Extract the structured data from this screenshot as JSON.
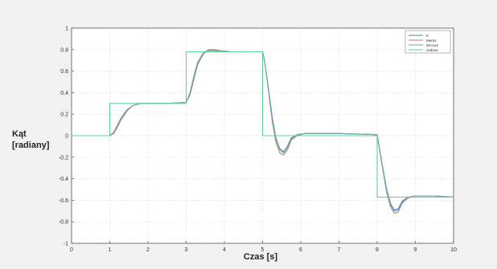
{
  "chart_data": {
    "type": "line",
    "title": "",
    "xlabel": "Czas [s]",
    "ylabel_lines": [
      "Kąt",
      "[radiany]"
    ],
    "xlim": [
      0,
      10
    ],
    "ylim": [
      -1,
      1
    ],
    "xticks": [
      0,
      1,
      2,
      3,
      4,
      5,
      6,
      7,
      8,
      9,
      10
    ],
    "yticks": [
      -1,
      -0.8,
      -0.6,
      -0.4,
      -0.2,
      0,
      0.2,
      0.4,
      0.6,
      0.8,
      1
    ],
    "ytick_labels": [
      "-1",
      "-0.8",
      "-0.6",
      "-0.4",
      "-0.2",
      "0",
      "0.2",
      "0.4",
      "0.6",
      "0.8",
      "1"
    ],
    "grid": true,
    "legend_position": "top-right",
    "series": [
      {
        "name": "K",
        "color": "#4f7fd8",
        "x": [
          0,
          1.0,
          1.1,
          1.2,
          1.3,
          1.45,
          1.6,
          1.8,
          2.0,
          2.5,
          3.0,
          3.1,
          3.2,
          3.3,
          3.45,
          3.6,
          3.75,
          3.9,
          4.2,
          5.0,
          5.05,
          5.15,
          5.25,
          5.35,
          5.45,
          5.55,
          5.65,
          5.75,
          5.9,
          6.1,
          6.5,
          7.0,
          8.0,
          8.05,
          8.15,
          8.25,
          8.35,
          8.45,
          8.55,
          8.65,
          8.8,
          9.0,
          9.5,
          10.0
        ],
        "y": [
          0,
          0,
          0.03,
          0.1,
          0.17,
          0.24,
          0.28,
          0.3,
          0.3,
          0.3,
          0.31,
          0.4,
          0.55,
          0.68,
          0.77,
          0.8,
          0.79,
          0.78,
          0.78,
          0.78,
          0.7,
          0.45,
          0.18,
          -0.02,
          -0.12,
          -0.15,
          -0.1,
          -0.02,
          0.01,
          0.02,
          0.02,
          0.02,
          0.01,
          -0.1,
          -0.3,
          -0.5,
          -0.63,
          -0.69,
          -0.68,
          -0.61,
          -0.57,
          -0.56,
          -0.56,
          -0.57
        ]
      },
      {
        "name": "Meras",
        "color": "#a08c5a",
        "x": [
          0,
          1.0,
          1.1,
          1.2,
          1.3,
          1.45,
          1.6,
          1.8,
          2.0,
          2.5,
          3.0,
          3.1,
          3.2,
          3.3,
          3.45,
          3.6,
          3.75,
          3.9,
          4.2,
          5.0,
          5.05,
          5.15,
          5.25,
          5.35,
          5.45,
          5.55,
          5.65,
          5.75,
          5.9,
          6.1,
          6.5,
          7.0,
          8.0,
          8.05,
          8.15,
          8.25,
          8.35,
          8.45,
          8.55,
          8.65,
          8.8,
          9.0,
          9.5,
          10.0
        ],
        "y": [
          0,
          0,
          0.02,
          0.08,
          0.15,
          0.23,
          0.28,
          0.3,
          0.3,
          0.3,
          0.31,
          0.38,
          0.52,
          0.66,
          0.76,
          0.8,
          0.8,
          0.79,
          0.78,
          0.78,
          0.7,
          0.43,
          0.14,
          -0.06,
          -0.16,
          -0.18,
          -0.13,
          -0.04,
          0.0,
          0.02,
          0.02,
          0.02,
          0.01,
          -0.1,
          -0.32,
          -0.53,
          -0.66,
          -0.72,
          -0.71,
          -0.63,
          -0.58,
          -0.56,
          -0.56,
          -0.57
        ]
      },
      {
        "name": "Wcross",
        "color": "#6fa8b0",
        "x": [
          0,
          1.0,
          1.1,
          1.2,
          1.3,
          1.45,
          1.6,
          1.8,
          2.0,
          2.5,
          3.0,
          3.1,
          3.2,
          3.3,
          3.45,
          3.6,
          3.75,
          3.9,
          4.2,
          5.0,
          5.05,
          5.15,
          5.25,
          5.35,
          5.45,
          5.55,
          5.65,
          5.75,
          5.9,
          6.1,
          6.5,
          7.0,
          8.0,
          8.05,
          8.15,
          8.25,
          8.35,
          8.45,
          8.55,
          8.65,
          8.8,
          9.0,
          9.5,
          10.0
        ],
        "y": [
          0,
          0,
          0.03,
          0.1,
          0.17,
          0.24,
          0.28,
          0.3,
          0.3,
          0.3,
          0.31,
          0.4,
          0.55,
          0.68,
          0.77,
          0.79,
          0.79,
          0.78,
          0.78,
          0.78,
          0.7,
          0.45,
          0.17,
          -0.03,
          -0.13,
          -0.16,
          -0.11,
          -0.03,
          0.01,
          0.02,
          0.02,
          0.02,
          0.01,
          -0.1,
          -0.31,
          -0.51,
          -0.64,
          -0.7,
          -0.69,
          -0.62,
          -0.57,
          -0.56,
          -0.56,
          -0.57
        ]
      },
      {
        "name": "zadana",
        "color": "#5fd39b",
        "x": [
          0,
          1,
          1,
          3,
          3,
          5,
          5,
          8,
          8,
          10
        ],
        "y": [
          0,
          0,
          0.3,
          0.3,
          0.78,
          0.78,
          0.0,
          0.0,
          -0.57,
          -0.57
        ]
      }
    ]
  }
}
